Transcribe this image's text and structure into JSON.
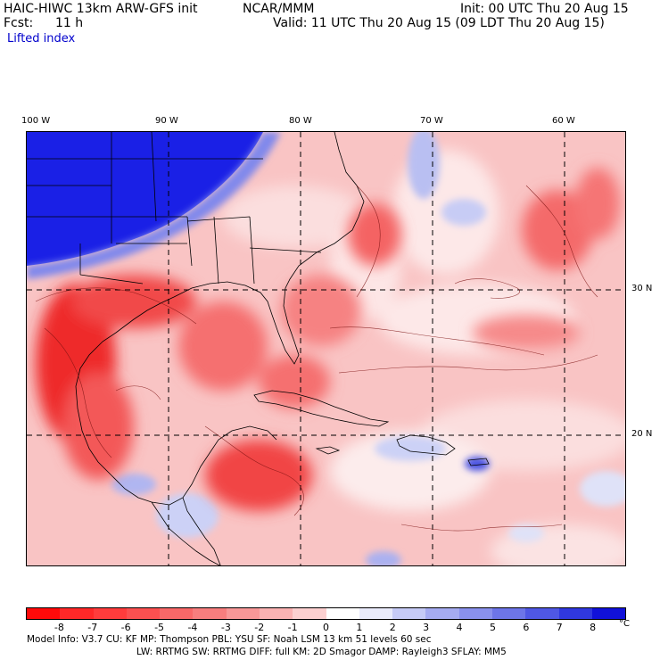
{
  "header": {
    "model": "HAIC-HIWC 13km ARW-GFS init",
    "org": "NCAR/MMM",
    "init": "Init: 00 UTC Thu 20 Aug 15",
    "fcst_label": "Fcst:",
    "fcst_value": "11 h",
    "valid": "Valid: 11 UTC Thu 20 Aug 15 (09 LDT Thu 20 Aug 15)",
    "field": "Lifted index"
  },
  "map": {
    "lon_labels": [
      "100 W",
      "90 W",
      "80 W",
      "70 W",
      "60 W"
    ],
    "lat_labels": [
      "30 N",
      "20 N"
    ],
    "colors": {
      "neg_strong": "#e8151c",
      "neg_mid": "#f26a6a",
      "neg_light": "#f7b3b3",
      "near_zero": "#fbe3e3",
      "pos_light": "#d6dcf7",
      "pos_strong": "#1f23e8",
      "coast": "#000000",
      "grid": "#000000"
    }
  },
  "colorbar": {
    "labels": [
      "-8",
      "-7",
      "-6",
      "-5",
      "-4",
      "-3",
      "-2",
      "-1",
      "0",
      "1",
      "2",
      "3",
      "4",
      "5",
      "6",
      "7",
      "8"
    ],
    "unit": "°C",
    "colors": [
      "#ff0a0a",
      "#ff2828",
      "#ff3c3c",
      "#fb5050",
      "#f86868",
      "#f77e7e",
      "#f89898",
      "#fab2b2",
      "#fcd0d0",
      "#ffffff",
      "#e9ebfb",
      "#c6cbf6",
      "#a6acf1",
      "#8a91ed",
      "#6d75e8",
      "#4f57e4",
      "#3038df",
      "#1111d9"
    ]
  },
  "model_info": {
    "line1": "Model Info: V3.7      CU: KF      MP: Thompson      PBL: YSU      SF: Noah LSM      13 km    51 levels   60 sec",
    "line2": "LW: RRTMG      SW: RRTMG  DIFF: full    KM: 2D Smagor DAMP: Rayleigh3  SFLAY: MM5"
  }
}
